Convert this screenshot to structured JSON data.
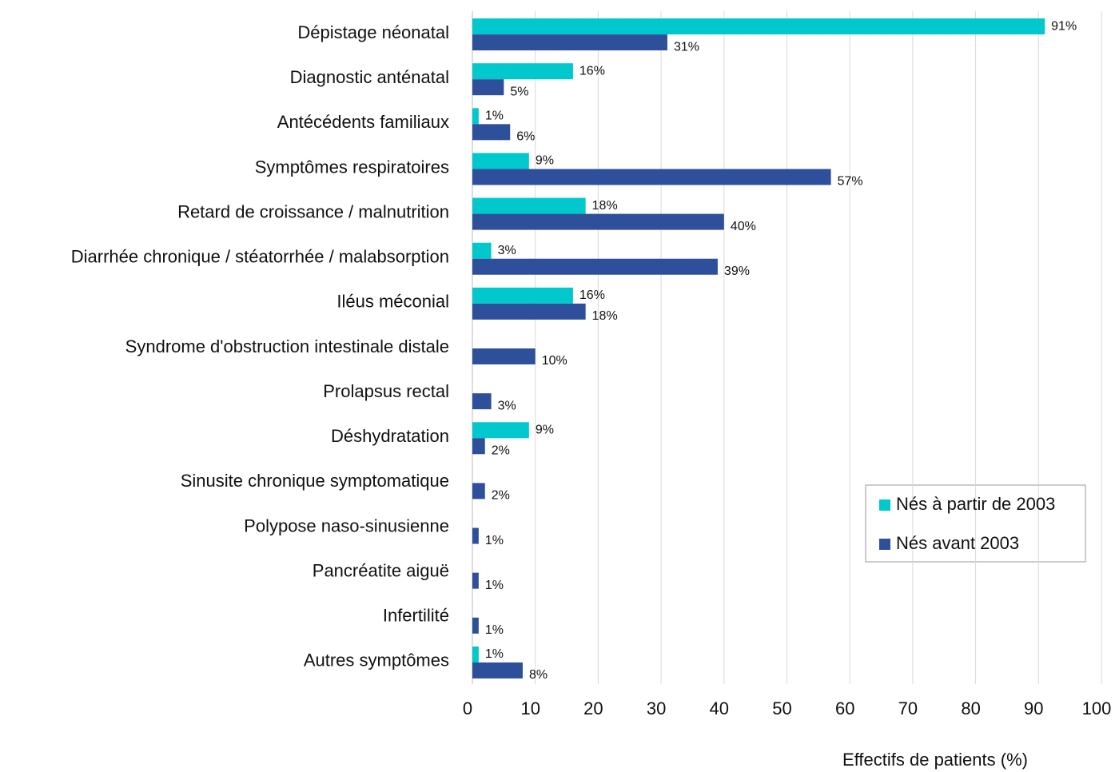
{
  "chart_data": {
    "type": "hbar",
    "x_label": "Effectifs de patients (%)",
    "categories": [
      "Dépistage néonatal",
      "Diagnostic anténatal",
      "Antécédents familiaux",
      "Symptômes respiratoires",
      "Retard de croissance / malnutrition",
      "Diarrhée chronique / stéatorrhée / malabsorption",
      "Iléus méconial",
      "Syndrome d'obstruction intestinale distale",
      "Prolapsus rectal",
      "Déshydratation",
      "Sinusite chronique symptomatique",
      "Polypose naso-sinusienne",
      "Pancréatite aiguë",
      "Infertilité",
      "Autres symptômes"
    ],
    "series": [
      {
        "name": "Nés à partir de 2003",
        "color": "#00c8cc",
        "values": [
          91,
          16,
          1,
          9,
          18,
          3,
          16,
          null,
          null,
          9,
          null,
          null,
          null,
          null,
          1
        ],
        "value_labels": [
          "91%",
          "16%",
          "1%",
          "9%",
          "18%",
          "3%",
          "16%",
          null,
          null,
          "9%",
          null,
          null,
          null,
          null,
          "1%"
        ]
      },
      {
        "name": "Nés avant 2003",
        "color": "#2e4f9a",
        "values": [
          31,
          5,
          6,
          57,
          40,
          39,
          18,
          10,
          3,
          2,
          2,
          1,
          1,
          1,
          8
        ],
        "value_labels": [
          "31%",
          "5%",
          "6%",
          "57%",
          "40%",
          "39%",
          "18%",
          "10%",
          "3%",
          "2%",
          "2%",
          "1%",
          "1%",
          "1%",
          "8%"
        ]
      }
    ],
    "xlim": [
      0,
      100
    ],
    "xticks": [
      0,
      10,
      20,
      30,
      40,
      50,
      60,
      70,
      80,
      90,
      100
    ],
    "grid": true
  }
}
